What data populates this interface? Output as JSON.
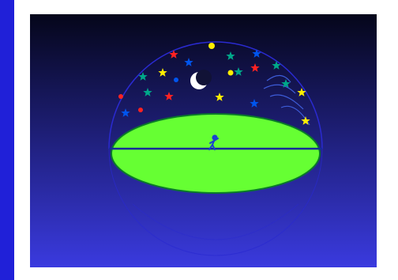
{
  "colors": {
    "page_background": "#2020d8",
    "frame": "#ffffff",
    "sky_top": "#05061a",
    "sky_bottom": "#3a3adf",
    "dome_line": "#2a2ad0",
    "ground_fill": "#66ff33",
    "ground_edge": "#0a7a2a",
    "horizon_line": "#162a9a",
    "observer": "#1a40d0",
    "moon": "#ffffff",
    "meteor_trail": "#3d5cd8"
  },
  "scene": {
    "moon_icon": "crescent-moon-icon",
    "observer_icon": "stick-figure-observer-icon",
    "star_icon": "star-icon",
    "planet_icon": "dot-planet-icon",
    "meteor_icon": "meteor-trails-icon",
    "star_colors": [
      "#ff2222",
      "#0055ee",
      "#00a88a",
      "#ffee00",
      "#ffffff"
    ]
  }
}
